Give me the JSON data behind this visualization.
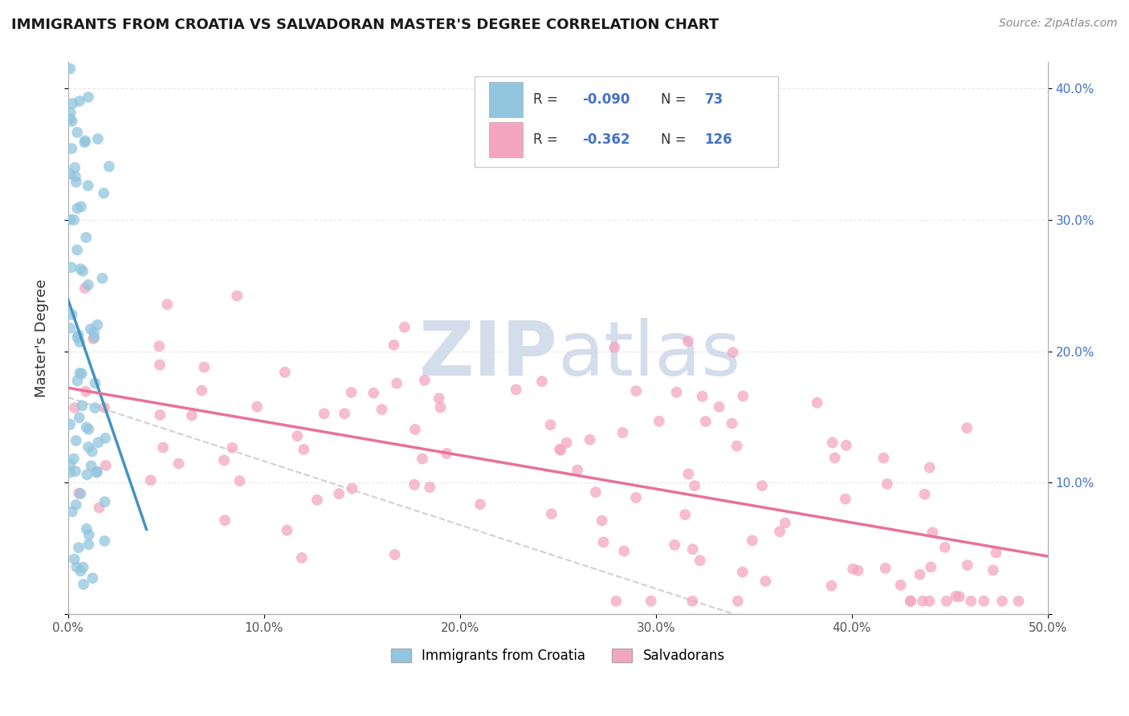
{
  "title": "IMMIGRANTS FROM CROATIA VS SALVADORAN MASTER'S DEGREE CORRELATION CHART",
  "source": "Source: ZipAtlas.com",
  "ylabel": "Master's Degree",
  "xlim": [
    0,
    0.5
  ],
  "ylim": [
    0.0,
    0.42
  ],
  "color_blue": "#92c5de",
  "color_pink": "#f4a6c0",
  "color_blue_line": "#4393c3",
  "color_pink_line": "#e8719a",
  "color_dashed": "#c8c8c8",
  "background_color": "#ffffff",
  "grid_color": "#e8e8e8",
  "watermark_color": "#ccd8e8",
  "r1": "-0.090",
  "n1": "73",
  "r2": "-0.362",
  "n2": "126"
}
